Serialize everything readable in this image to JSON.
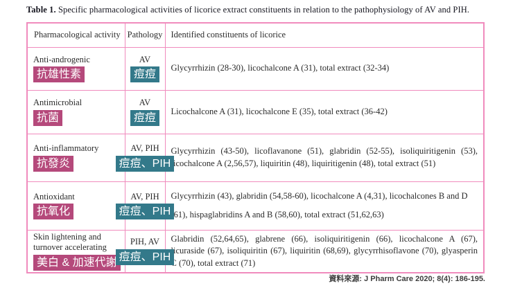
{
  "caption": {
    "label": "Table 1.",
    "text": " Specific pharmacological activities of licorice extract constituents in relation to the pathophysiology of AV and PIH."
  },
  "table": {
    "columns": [
      "Pharmacological activity",
      "Pathology",
      "Identified constituents of licorice"
    ],
    "rows": [
      {
        "activity": "Anti-androgenic",
        "activity_zh": "抗雄性素",
        "pathology": "AV",
        "pathology_zh": "痘痘",
        "constituents": "Glycyrrhizin (28-30), licochalcone A (31), total extract (32-34)"
      },
      {
        "activity": "Antimicrobial",
        "activity_zh": "抗菌",
        "pathology": "AV",
        "pathology_zh": "痘痘",
        "constituents": "Licochalcone A (31), licochalcone E (35), total extract (36-42)"
      },
      {
        "activity": "Anti-inflammatory",
        "activity_zh": "抗發炎",
        "pathology": "AV, PIH",
        "pathology_zh": "痘痘、PIH",
        "constituents": "Glycyrrhizin (43-50), licoflavanone (51), glabridin (52-55), isoliquiritigenin (53), licochalcone A (2,56,57), liquiritin (48), liquiritigenin (48), total extract (51)"
      },
      {
        "activity": "Antioxidant",
        "activity_zh": "抗氧化",
        "pathology": "AV, PIH",
        "pathology_zh": "痘痘、PIH",
        "constituents": "Glycyrrhizin (43), glabridin (54,58-60), licochalcone A (4,31), licochalcones B and D (61), hispaglabridins A and B (58,60), total extract (51,62,63)"
      },
      {
        "activity": "Skin lightening and turnover accelerating",
        "activity_zh": "美白 & 加速代謝",
        "pathology": "PIH, AV",
        "pathology_zh": "痘痘、PIH",
        "constituents": "Glabridin (52,64,65), glabrene (66), isoliquiritigenin (66), licochalcone A (67), licuraside (67), isoliquiritin (67), liquiritin (68,69), glycyrrhisoflavone (70), glyasperin C (70), total extract (71)"
      }
    ]
  },
  "footer": {
    "source": "資料來源: J Pharm Care 2020; 8(4): 186-195."
  },
  "colors": {
    "table_border": "#f08bbd",
    "activity_highlight": "#b5497b",
    "pathology_highlight": "#33798a",
    "text": "#222222"
  }
}
